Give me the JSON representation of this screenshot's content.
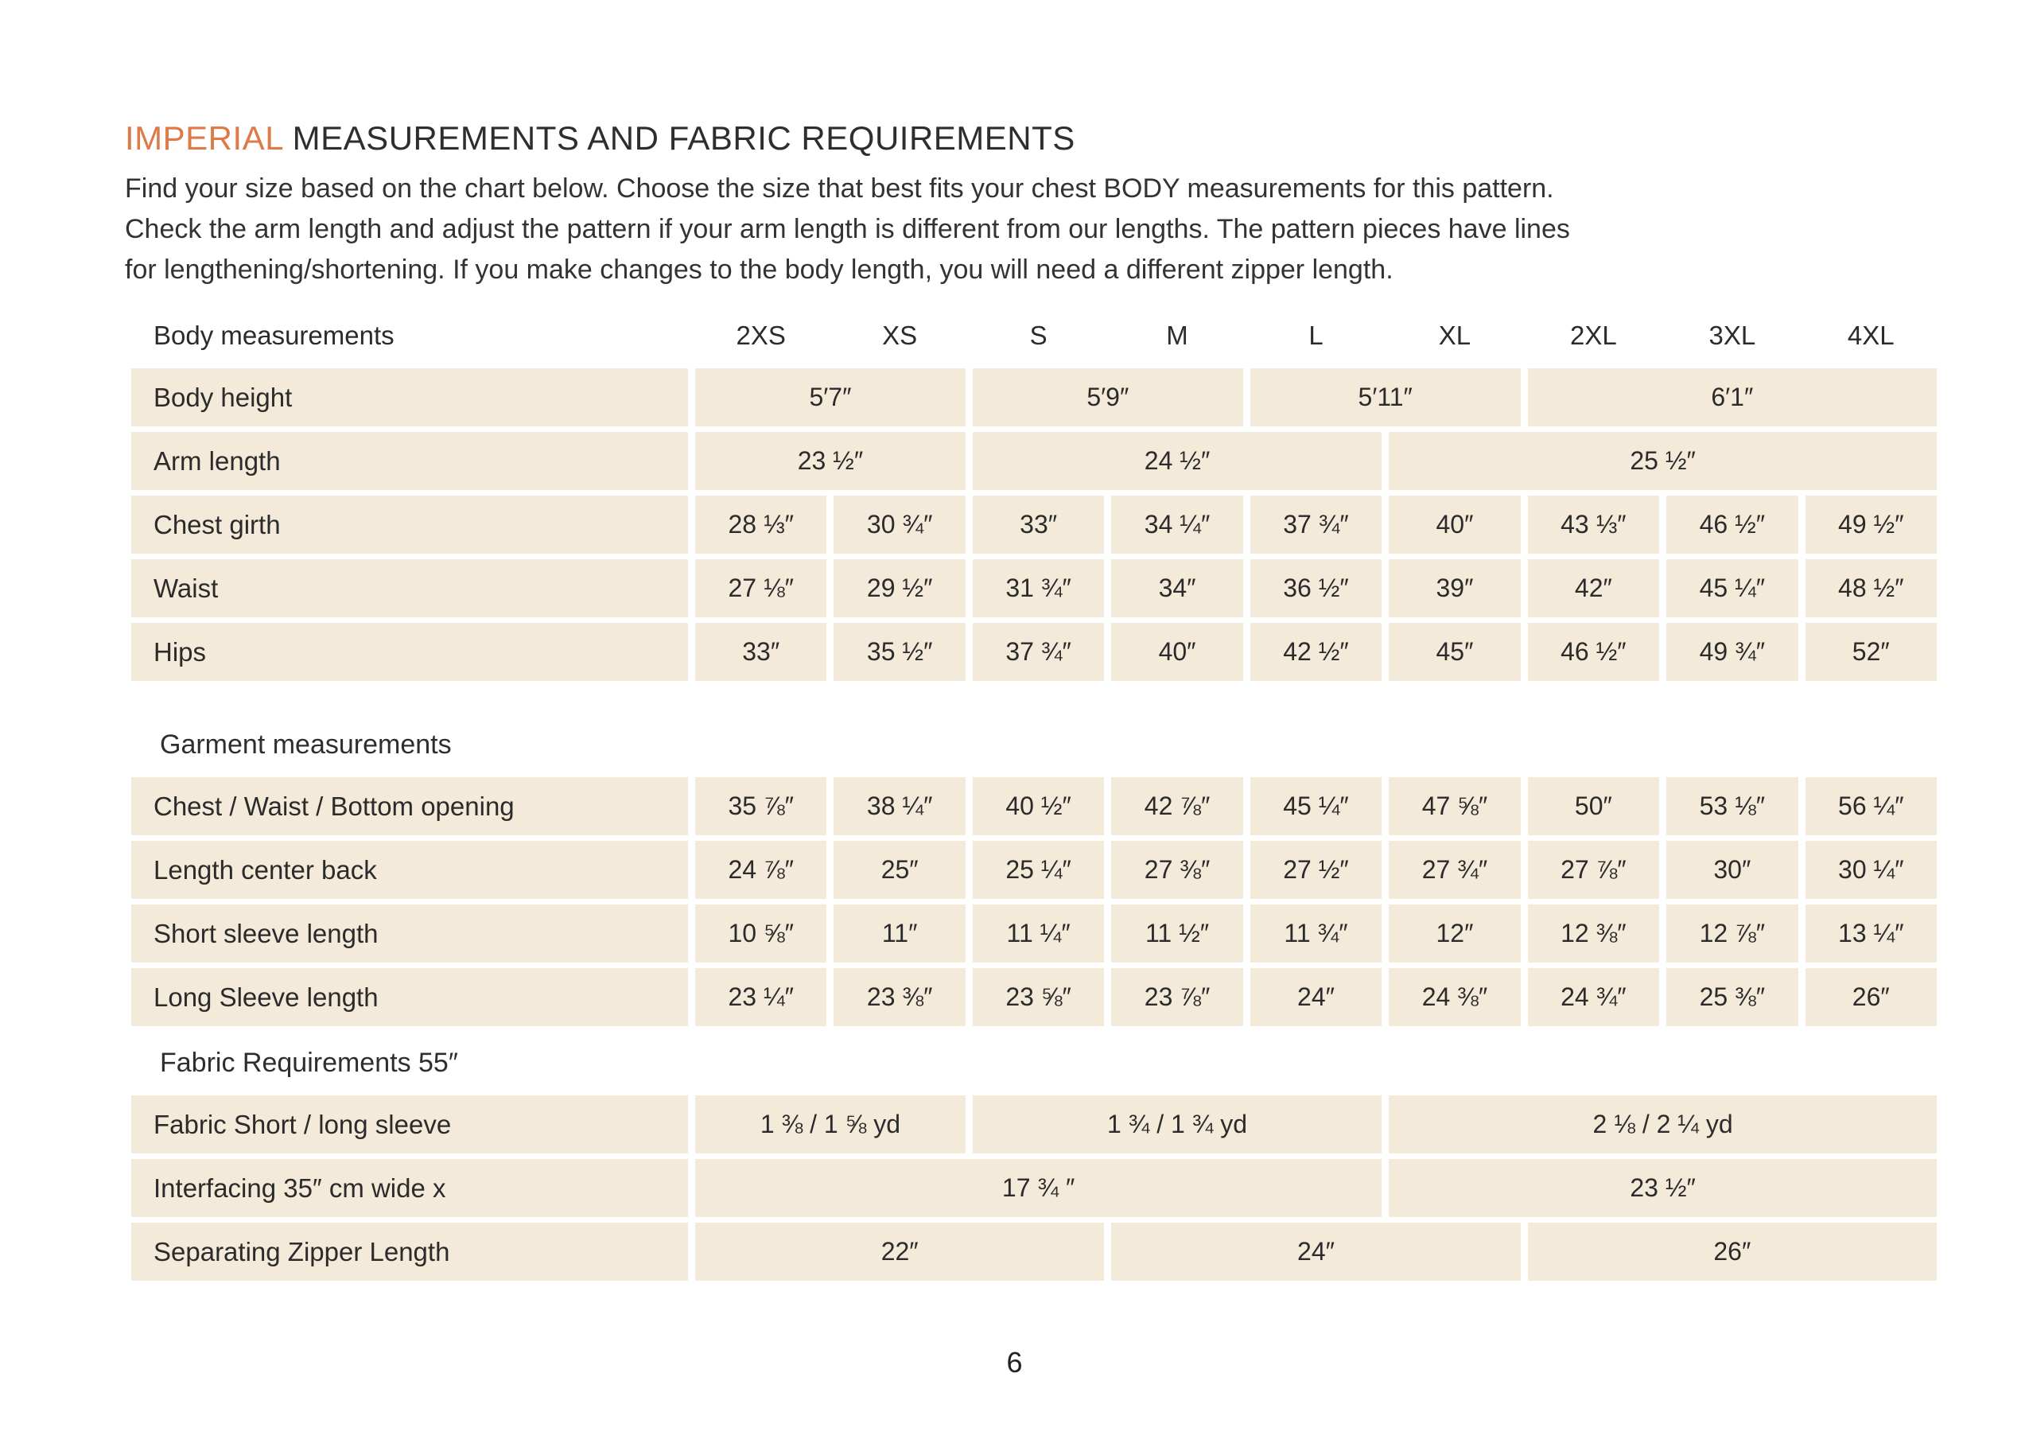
{
  "colors": {
    "accent": "#DD7A48",
    "cell_background": "#F4EAD9",
    "text": "#2B2B2B"
  },
  "header": {
    "title_accent": "IMPERIAL",
    "title_rest": " MEASUREMENTS AND FABRIC REQUIREMENTS",
    "intro_lines": [
      "Find your size based on the chart below. Choose the size that best fits your chest BODY measurements for this pattern.",
      "Check the arm length and adjust the pattern if your arm length is different from our lengths. The pattern pieces have lines",
      "for lengthening/shortening. If you make changes to the body length, you will need a different zipper length."
    ]
  },
  "table": {
    "header": {
      "label": "Body measurements",
      "sizes": [
        "2XS",
        "XS",
        "S",
        "M",
        "L",
        "XL",
        "2XL",
        "3XL",
        "4XL"
      ]
    },
    "body_rows": [
      {
        "label": "Body height",
        "cells": [
          {
            "span": 2,
            "value": "5′7″"
          },
          {
            "span": 2,
            "value": "5′9″"
          },
          {
            "span": 2,
            "value": "5′11″"
          },
          {
            "span": 3,
            "value": "6′1″"
          }
        ]
      },
      {
        "label": "Arm length",
        "cells": [
          {
            "span": 2,
            "value": "23 ½″"
          },
          {
            "span": 3,
            "value": "24 ½″"
          },
          {
            "span": 4,
            "value": "25 ½″"
          }
        ]
      },
      {
        "label": "Chest girth",
        "cells": [
          {
            "span": 1,
            "value": "28 ⅓″"
          },
          {
            "span": 1,
            "value": "30 ¾″"
          },
          {
            "span": 1,
            "value": "33″"
          },
          {
            "span": 1,
            "value": "34 ¼″"
          },
          {
            "span": 1,
            "value": "37 ¾″"
          },
          {
            "span": 1,
            "value": "40″"
          },
          {
            "span": 1,
            "value": "43 ⅓″"
          },
          {
            "span": 1,
            "value": "46 ½″"
          },
          {
            "span": 1,
            "value": "49 ½″"
          }
        ]
      },
      {
        "label": "Waist",
        "cells": [
          {
            "span": 1,
            "value": "27 ⅛″"
          },
          {
            "span": 1,
            "value": "29 ½″"
          },
          {
            "span": 1,
            "value": "31 ¾″"
          },
          {
            "span": 1,
            "value": "34″"
          },
          {
            "span": 1,
            "value": "36 ½″"
          },
          {
            "span": 1,
            "value": "39″"
          },
          {
            "span": 1,
            "value": "42″"
          },
          {
            "span": 1,
            "value": "45 ¼″"
          },
          {
            "span": 1,
            "value": "48 ½″"
          }
        ]
      },
      {
        "label": "Hips",
        "cells": [
          {
            "span": 1,
            "value": "33″"
          },
          {
            "span": 1,
            "value": "35 ½″"
          },
          {
            "span": 1,
            "value": "37 ¾″"
          },
          {
            "span": 1,
            "value": "40″"
          },
          {
            "span": 1,
            "value": "42 ½″"
          },
          {
            "span": 1,
            "value": "45″"
          },
          {
            "span": 1,
            "value": "46 ½″"
          },
          {
            "span": 1,
            "value": "49 ¾″"
          },
          {
            "span": 1,
            "value": "52″"
          }
        ]
      }
    ],
    "garment_label": "Garment measurements",
    "garment_rows": [
      {
        "label": "Chest / Waist / Bottom opening",
        "cells": [
          {
            "span": 1,
            "value": "35 ⅞″"
          },
          {
            "span": 1,
            "value": "38 ¼″"
          },
          {
            "span": 1,
            "value": "40 ½″"
          },
          {
            "span": 1,
            "value": "42 ⅞″"
          },
          {
            "span": 1,
            "value": "45 ¼″"
          },
          {
            "span": 1,
            "value": "47 ⅝″"
          },
          {
            "span": 1,
            "value": "50″"
          },
          {
            "span": 1,
            "value": "53 ⅛″"
          },
          {
            "span": 1,
            "value": "56 ¼″"
          }
        ]
      },
      {
        "label": "Length center back",
        "cells": [
          {
            "span": 1,
            "value": "24 ⅞″"
          },
          {
            "span": 1,
            "value": "25″"
          },
          {
            "span": 1,
            "value": "25 ¼″"
          },
          {
            "span": 1,
            "value": "27 ⅜″"
          },
          {
            "span": 1,
            "value": "27 ½″"
          },
          {
            "span": 1,
            "value": "27 ¾″"
          },
          {
            "span": 1,
            "value": "27 ⅞″"
          },
          {
            "span": 1,
            "value": "30″"
          },
          {
            "span": 1,
            "value": "30 ¼″"
          }
        ]
      },
      {
        "label": "Short sleeve length",
        "cells": [
          {
            "span": 1,
            "value": "10 ⅝″"
          },
          {
            "span": 1,
            "value": "11″"
          },
          {
            "span": 1,
            "value": "11 ¼″"
          },
          {
            "span": 1,
            "value": "11 ½″"
          },
          {
            "span": 1,
            "value": "11 ¾″"
          },
          {
            "span": 1,
            "value": "12″"
          },
          {
            "span": 1,
            "value": "12 ⅜″"
          },
          {
            "span": 1,
            "value": "12 ⅞″"
          },
          {
            "span": 1,
            "value": "13 ¼″"
          }
        ]
      },
      {
        "label": "Long Sleeve length",
        "cells": [
          {
            "span": 1,
            "value": "23 ¼″"
          },
          {
            "span": 1,
            "value": "23 ⅜″"
          },
          {
            "span": 1,
            "value": "23 ⅝″"
          },
          {
            "span": 1,
            "value": "23 ⅞″"
          },
          {
            "span": 1,
            "value": "24″"
          },
          {
            "span": 1,
            "value": "24 ⅜″"
          },
          {
            "span": 1,
            "value": "24 ¾″"
          },
          {
            "span": 1,
            "value": "25 ⅜″"
          },
          {
            "span": 1,
            "value": "26″"
          }
        ]
      }
    ],
    "fabric_label": "Fabric Requirements 55″",
    "fabric_rows": [
      {
        "label": "Fabric Short / long sleeve",
        "cells": [
          {
            "span": 2,
            "value": "1 ⅜ / 1 ⅝ yd"
          },
          {
            "span": 3,
            "value": "1 ¾ / 1 ¾ yd"
          },
          {
            "span": 4,
            "value": "2 ⅛ / 2 ¼ yd"
          }
        ]
      },
      {
        "label": "Interfacing  35″ cm wide x",
        "cells": [
          {
            "span": 5,
            "value": "17 ¾ ″"
          },
          {
            "span": 4,
            "value": "23 ½″"
          }
        ]
      },
      {
        "label": "Separating Zipper Length",
        "cells": [
          {
            "span": 3,
            "value": "22″"
          },
          {
            "span": 3,
            "value": "24″"
          },
          {
            "span": 3,
            "value": "26″"
          }
        ]
      }
    ]
  },
  "page": {
    "number": "6"
  }
}
